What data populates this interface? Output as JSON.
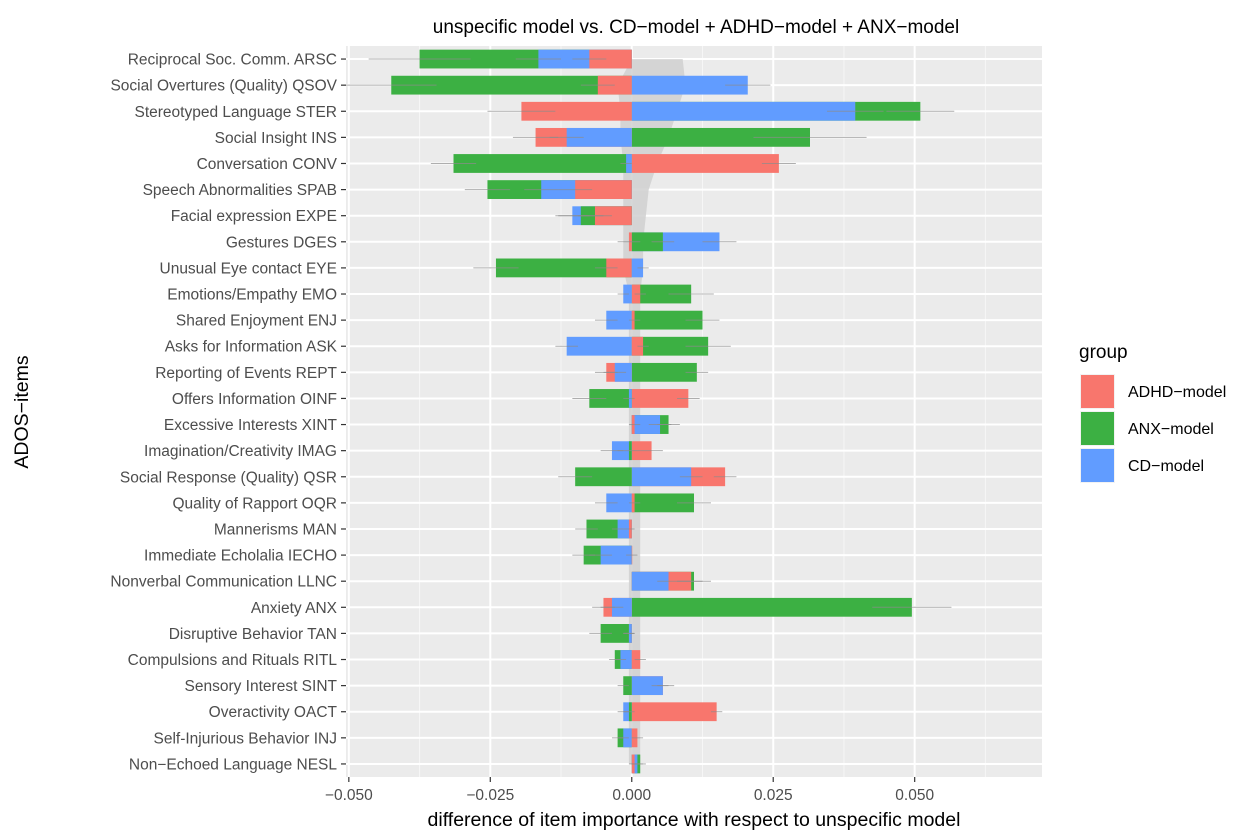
{
  "chart_data": {
    "type": "bar",
    "orientation": "horizontal",
    "title": "unspecific model  vs.  CD−model + ADHD−model + ANX−model",
    "xlabel": "difference of item importance with respect to unspecific model",
    "ylabel": "ADOS−items",
    "xlim": [
      -0.0505,
      0.0725
    ],
    "xticks": [
      -0.05,
      -0.025,
      0.0,
      0.025,
      0.05
    ],
    "xtick_labels": [
      "−0.050",
      "−0.025",
      "0.000",
      "0.025",
      "0.050"
    ],
    "grid": true,
    "legend_position": "right",
    "legend_title": "group",
    "categories": [
      "Reciprocal Soc. Comm. ARSC",
      "Social Overtures (Quality) QSOV",
      "Stereotyped Language STER",
      "Social Insight INS",
      "Conversation CONV",
      "Speech Abnormalities SPAB",
      "Facial expression EXPE",
      "Gestures DGES",
      "Unusual Eye contact EYE",
      "Emotions/Empathy EMO",
      "Shared Enjoyment ENJ",
      "Asks for Information ASK",
      "Reporting of Events REPT",
      "Offers Information OINF",
      "Excessive Interests XINT",
      "Imagination/Creativity IMAG",
      "Social Response (Quality) QSR",
      "Quality of Rapport OQR",
      "Mannerisms MAN",
      "Immediate Echolalia IECHO",
      "Nonverbal Communication LLNC",
      "Anxiety ANX",
      "Disruptive Behavior TAN",
      "Compulsions and Rituals RITL",
      "Sensory Interest SINT",
      "Overactivity OACT",
      "Self-Injurious Behavior INJ",
      "Non−Echoed Language NESL"
    ],
    "series": [
      {
        "name": "ADHD−model",
        "color": "#F8766D",
        "values": [
          -0.0075,
          -0.006,
          -0.0195,
          -0.017,
          0.026,
          -0.01,
          -0.0065,
          -0.0005,
          -0.0045,
          0.0015,
          0.0005,
          0.002,
          -0.0045,
          0.01,
          0.0005,
          0.0035,
          0.0165,
          0.0005,
          -0.0005,
          0.0,
          0.0105,
          -0.005,
          -0.0005,
          0.0015,
          0.0055,
          0.015,
          0.001,
          0.0005
        ],
        "errors": [
          0.003,
          0.003,
          0.006,
          0.004,
          0.003,
          0.003,
          0.003,
          0.002,
          0.002,
          0.001,
          0.001,
          0.001,
          0.002,
          0.002,
          0.001,
          0.002,
          0.002,
          0.001,
          0.001,
          0.001,
          0.002,
          0.002,
          0.001,
          0.001,
          0.001,
          0.001,
          0.001,
          0.001
        ]
      },
      {
        "name": "ANX−model",
        "color": "#3CB043",
        "values": [
          -0.0375,
          -0.0425,
          0.051,
          0.0315,
          -0.0315,
          -0.0255,
          -0.009,
          0.0055,
          -0.024,
          0.0105,
          0.0125,
          0.0135,
          0.0115,
          -0.0075,
          0.0065,
          -0.0005,
          -0.01,
          0.011,
          -0.008,
          -0.0085,
          0.011,
          0.0495,
          -0.0055,
          -0.003,
          -0.0015,
          -0.0005,
          -0.0025,
          0.0015
        ],
        "errors": [
          0.009,
          0.008,
          0.006,
          0.01,
          0.004,
          0.004,
          0.004,
          0.002,
          0.004,
          0.004,
          0.003,
          0.004,
          0.002,
          0.003,
          0.002,
          0.002,
          0.003,
          0.003,
          0.002,
          0.002,
          0.003,
          0.007,
          0.002,
          0.001,
          0.001,
          0.001,
          0.001,
          0.001
        ]
      },
      {
        "name": "CD−model",
        "color": "#619CFF",
        "values": [
          -0.0165,
          0.0205,
          0.0395,
          -0.0115,
          -0.001,
          -0.016,
          -0.0105,
          0.0155,
          0.002,
          -0.0015,
          -0.0045,
          -0.0115,
          -0.003,
          -0.0005,
          0.005,
          -0.0035,
          0.0105,
          -0.0045,
          -0.0025,
          -0.0055,
          0.0065,
          -0.0035,
          -0.0005,
          -0.002,
          0.0055,
          -0.0015,
          -0.0015,
          0.001
        ],
        "errors": [
          0.004,
          0.004,
          0.005,
          0.003,
          0.001,
          0.003,
          0.003,
          0.003,
          0.001,
          0.001,
          0.002,
          0.002,
          0.002,
          0.001,
          0.002,
          0.002,
          0.002,
          0.002,
          0.001,
          0.002,
          0.002,
          0.002,
          0.001,
          0.001,
          0.002,
          0.001,
          0.001,
          0.001
        ]
      }
    ],
    "reference_band": {
      "color": "#d0d0d0",
      "lower": [
        0.0,
        -0.0025,
        -0.002,
        -0.002,
        -0.0015,
        -0.0015,
        -0.0015,
        -0.0015,
        -0.0015,
        -0.0005,
        -0.0005,
        -0.0005,
        -0.0005,
        -0.0005,
        -0.0005,
        -0.0005,
        -0.0005,
        -0.0005,
        -0.0005,
        -0.0005,
        -0.0005,
        -0.0005,
        -0.0005,
        -0.0005,
        -0.0005,
        -0.0005,
        -0.0005,
        -0.0005
      ],
      "upper": [
        0.009,
        0.0095,
        0.008,
        0.0065,
        0.0045,
        0.003,
        0.0025,
        0.002,
        0.002,
        0.0015,
        0.0015,
        0.0015,
        0.0015,
        0.0015,
        0.0015,
        0.0015,
        0.0015,
        0.0015,
        0.0015,
        0.0015,
        0.0015,
        0.0015,
        0.0015,
        0.0015,
        0.0015,
        0.0015,
        0.0015,
        0.0015
      ]
    }
  }
}
